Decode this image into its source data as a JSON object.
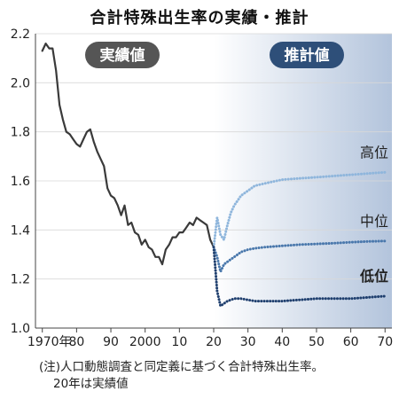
{
  "chart_data": {
    "type": "line",
    "title": "合計特殊出生率の実績・推計",
    "xlabel": "",
    "ylabel": "",
    "x_ticks": [
      "1970年",
      "80",
      "90",
      "2000",
      "10",
      "20",
      "30",
      "40",
      "50",
      "60",
      "70"
    ],
    "y_ticks": [
      "1.0",
      "1.2",
      "1.4",
      "1.6",
      "1.8",
      "2.0",
      "2.2"
    ],
    "xlim": [
      1968,
      2072
    ],
    "ylim": [
      1.0,
      2.2
    ],
    "region_labels": {
      "actual": "実績値",
      "projection": "推計値"
    },
    "colors": {
      "actual": "#3a3a3a",
      "high": "#8fb6dc",
      "medium": "#4a78ac",
      "low": "#1f3f6e",
      "projection_bg_start": "#ffffff",
      "projection_bg_end": "#b3c4dc",
      "actual_badge": "#555555",
      "projection_badge": "#2e4f79"
    },
    "series": [
      {
        "name": "実績値",
        "style": "solid",
        "x": [
          1970,
          1971,
          1972,
          1973,
          1974,
          1975,
          1976,
          1977,
          1978,
          1979,
          1980,
          1981,
          1982,
          1983,
          1984,
          1985,
          1986,
          1987,
          1988,
          1989,
          1990,
          1991,
          1992,
          1993,
          1994,
          1995,
          1996,
          1997,
          1998,
          1999,
          2000,
          2001,
          2002,
          2003,
          2004,
          2005,
          2006,
          2007,
          2008,
          2009,
          2010,
          2011,
          2012,
          2013,
          2014,
          2015,
          2016,
          2017,
          2018,
          2019,
          2020
        ],
        "values": [
          2.13,
          2.16,
          2.14,
          2.14,
          2.05,
          1.91,
          1.85,
          1.8,
          1.79,
          1.77,
          1.75,
          1.74,
          1.77,
          1.8,
          1.81,
          1.76,
          1.72,
          1.69,
          1.66,
          1.57,
          1.54,
          1.53,
          1.5,
          1.46,
          1.5,
          1.42,
          1.43,
          1.39,
          1.38,
          1.34,
          1.36,
          1.33,
          1.32,
          1.29,
          1.29,
          1.26,
          1.32,
          1.34,
          1.37,
          1.37,
          1.39,
          1.39,
          1.41,
          1.43,
          1.42,
          1.45,
          1.44,
          1.43,
          1.42,
          1.36,
          1.33
        ]
      },
      {
        "name": "高位",
        "style": "dotted",
        "x": [
          2020,
          2021,
          2022,
          2023,
          2024,
          2025,
          2026,
          2027,
          2028,
          2030,
          2032,
          2035,
          2040,
          2045,
          2050,
          2055,
          2060,
          2065,
          2070
        ],
        "values": [
          1.33,
          1.45,
          1.38,
          1.36,
          1.42,
          1.47,
          1.5,
          1.52,
          1.54,
          1.56,
          1.58,
          1.59,
          1.605,
          1.61,
          1.615,
          1.62,
          1.625,
          1.63,
          1.635
        ]
      },
      {
        "name": "中位",
        "style": "dotted",
        "x": [
          2020,
          2021,
          2022,
          2023,
          2024,
          2025,
          2026,
          2027,
          2028,
          2030,
          2032,
          2035,
          2040,
          2045,
          2050,
          2055,
          2060,
          2065,
          2070
        ],
        "values": [
          1.33,
          1.29,
          1.23,
          1.26,
          1.27,
          1.28,
          1.29,
          1.3,
          1.31,
          1.32,
          1.325,
          1.33,
          1.335,
          1.34,
          1.343,
          1.346,
          1.35,
          1.353,
          1.355
        ]
      },
      {
        "name": "低位",
        "style": "dotted",
        "x": [
          2020,
          2021,
          2022,
          2023,
          2024,
          2025,
          2026,
          2027,
          2028,
          2030,
          2032,
          2035,
          2040,
          2045,
          2050,
          2055,
          2060,
          2065,
          2070
        ],
        "values": [
          1.33,
          1.15,
          1.09,
          1.1,
          1.11,
          1.115,
          1.12,
          1.12,
          1.12,
          1.115,
          1.11,
          1.11,
          1.11,
          1.115,
          1.12,
          1.12,
          1.12,
          1.125,
          1.13
        ]
      }
    ]
  },
  "notes": {
    "line1": "(注)人口動態調査と同定義に基づく合計特殊出生率。",
    "line2": "20年は実績値"
  }
}
